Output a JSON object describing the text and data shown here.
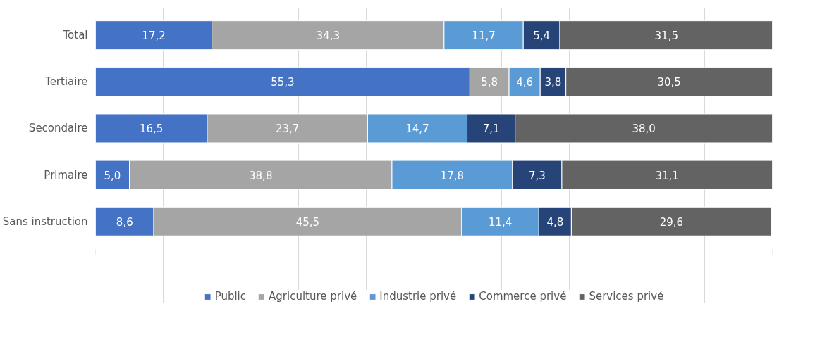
{
  "chart_data": {
    "type": "bar",
    "orientation": "horizontal",
    "stacked": true,
    "categories": [
      "Total",
      "Tertiaire",
      "Secondaire",
      "Primaire",
      "Sans instruction"
    ],
    "series": [
      {
        "name": "Public",
        "color": "#4472c4",
        "values": [
          17.2,
          55.3,
          16.5,
          5.0,
          8.6
        ],
        "value_labels": [
          "17,2",
          "55,3",
          "16,5",
          "5,0",
          "8,6"
        ]
      },
      {
        "name": "Agriculture privé",
        "color": "#a5a5a5",
        "values": [
          34.3,
          5.8,
          23.7,
          38.8,
          45.5
        ],
        "value_labels": [
          "34,3",
          "5,8",
          "23,7",
          "38,8",
          "45,5"
        ]
      },
      {
        "name": "Industrie privé",
        "color": "#5b9bd5",
        "values": [
          11.7,
          4.6,
          14.7,
          17.8,
          11.4
        ],
        "value_labels": [
          "11,7",
          "4,6",
          "14,7",
          "17,8",
          "11,4"
        ]
      },
      {
        "name": "Commerce privé",
        "color": "#264478",
        "values": [
          5.4,
          3.8,
          7.1,
          7.3,
          4.8
        ],
        "value_labels": [
          "5,4",
          "3,8",
          "7,1",
          "7,3",
          "4,8"
        ]
      },
      {
        "name": "Services privé",
        "color": "#636363",
        "values": [
          31.5,
          30.5,
          38.0,
          31.1,
          29.6
        ],
        "value_labels": [
          "31,5",
          "30,5",
          "38,0",
          "31,1",
          "29,6"
        ]
      }
    ],
    "xlim": [
      0,
      100
    ],
    "xticks": [
      {
        "value": 0,
        "label": null
      },
      {
        "value": 10,
        "label": null
      },
      {
        "value": 20,
        "label": null
      },
      {
        "value": 30,
        "label": null
      },
      {
        "value": 40,
        "label": null
      },
      {
        "value": 50,
        "label": null
      },
      {
        "value": 60,
        "label": null
      },
      {
        "value": 70,
        "label": null
      },
      {
        "value": 80,
        "label": null
      },
      {
        "value": 90,
        "label": null
      },
      {
        "value": 100,
        "label": null
      }
    ],
    "tick_labels": "y",
    "grid": "x",
    "legend": "bottom"
  }
}
